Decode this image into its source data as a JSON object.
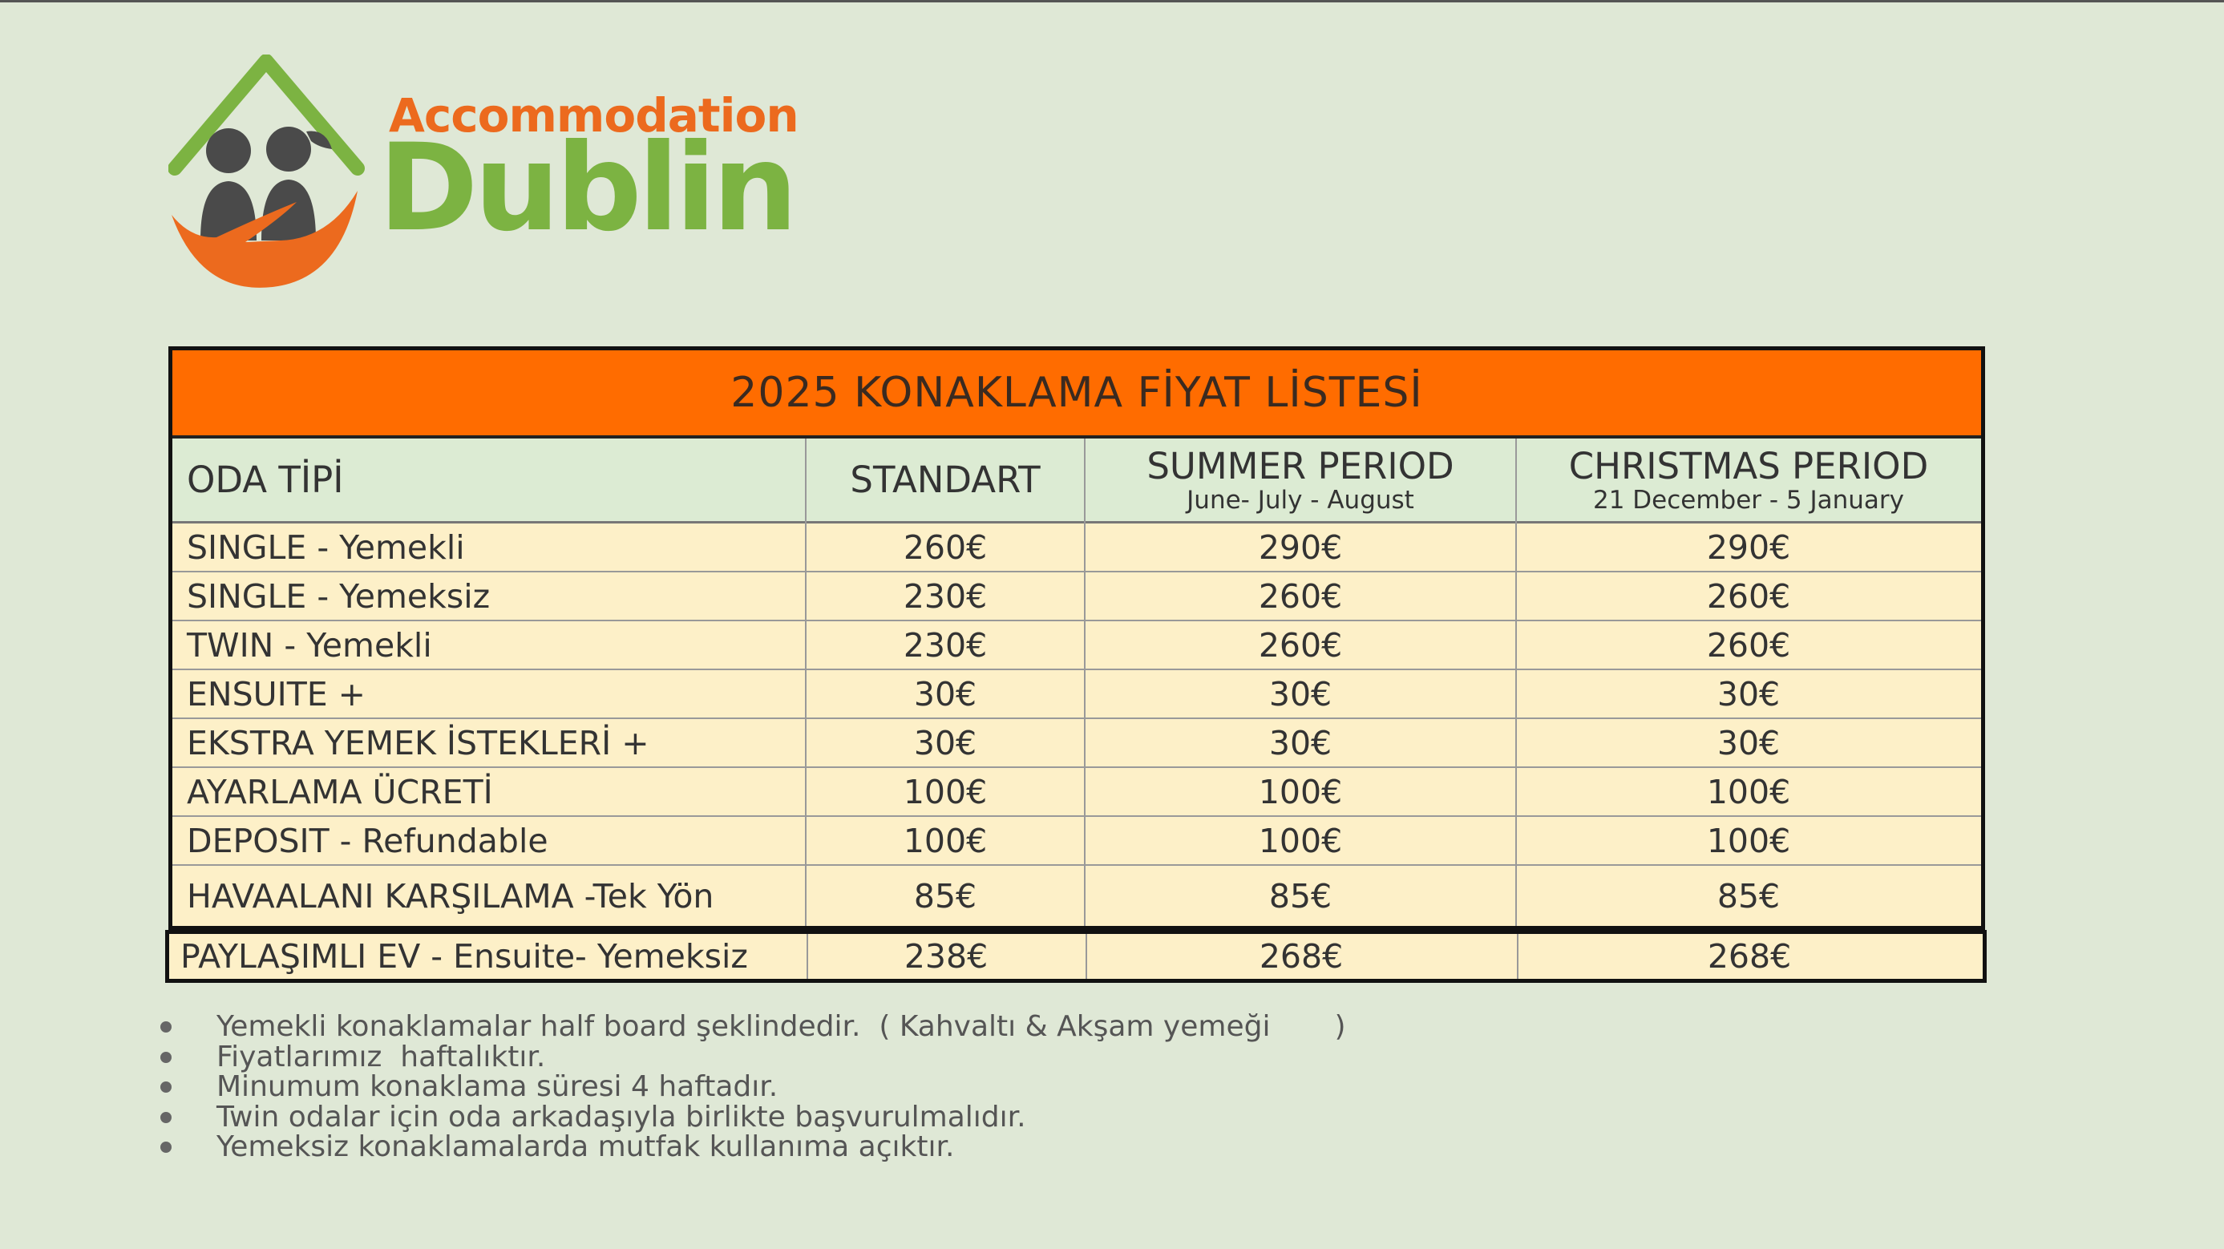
{
  "logo": {
    "word1": "Accommodation",
    "word2": "Dublin",
    "colors": {
      "orange": "#ec6a1e",
      "green": "#7cb342",
      "gray": "#4a4a4a"
    }
  },
  "price_table": {
    "title": "2025 KONAKLAMA FİYAT LİSTESİ",
    "headers": [
      {
        "label": "ODA TİPİ",
        "sub": ""
      },
      {
        "label": "STANDART",
        "sub": ""
      },
      {
        "label": "SUMMER PERIOD",
        "sub": "June- July - August"
      },
      {
        "label": "CHRISTMAS PERIOD",
        "sub": "21 December - 5 January"
      }
    ],
    "rows": [
      [
        "SINGLE - Yemekli",
        "260€",
        "290€",
        "290€"
      ],
      [
        "SINGLE - Yemeksiz",
        "230€",
        "260€",
        "260€"
      ],
      [
        "TWIN - Yemekli",
        "230€",
        "260€",
        "260€"
      ],
      [
        "ENSUITE +",
        "30€",
        "30€",
        "30€"
      ],
      [
        "EKSTRA YEMEK İSTEKLERİ +",
        "30€",
        "30€",
        "30€"
      ],
      [
        "AYARLAMA ÜCRETİ",
        "100€",
        "100€",
        "100€"
      ],
      [
        "DEPOSIT - Refundable",
        "100€",
        "100€",
        "100€"
      ],
      [
        "HAVAALANI KARŞILAMA -Tek Yön",
        "85€",
        "85€",
        "85€"
      ]
    ],
    "highlighted_row": [
      "PAYLAŞIMLI EV - Ensuite- Yemeksiz",
      "238€",
      "268€",
      "268€"
    ],
    "colors": {
      "title_bg": "#ff6c00",
      "header_bg": "#dcebd3",
      "row_bg": "#fdf0c8"
    }
  },
  "notes": [
    "Yemekli konaklamalar half board şeklindedir.  ( Kahvaltı & Akşam yemeği       )",
    "Fiyatlarımız  haftalıktır.",
    "Minumum konaklama süresi 4 haftadır.",
    "Twin odalar için oda arkadaşıyla birlikte başvurulmalıdır.",
    "Yemeksiz konaklamalarda mutfak kullanıma açıktır."
  ]
}
